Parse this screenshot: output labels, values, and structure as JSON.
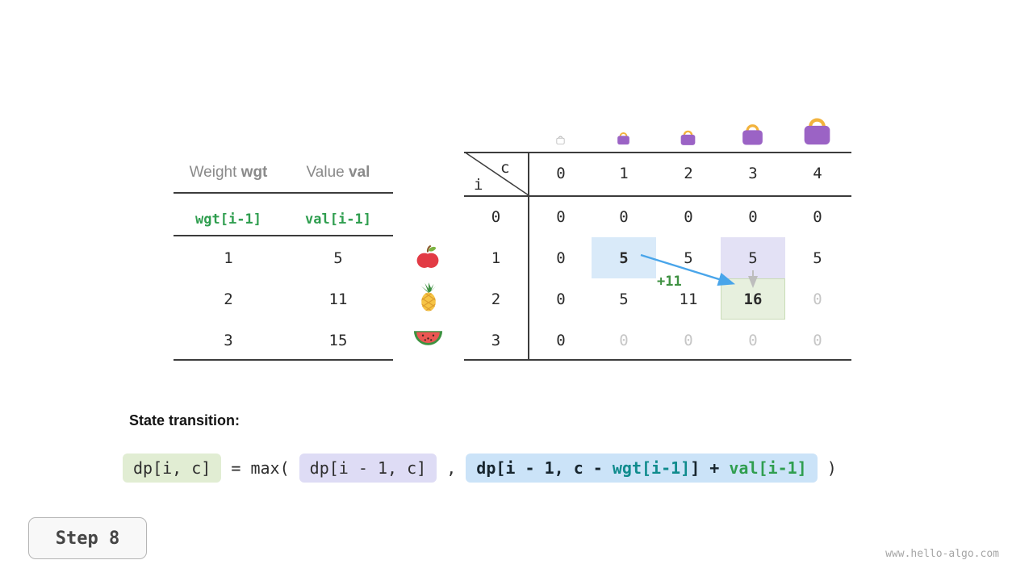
{
  "colors": {
    "code_green": "#2f9e4f",
    "code_teal": "#0f8b8d",
    "arrow_blue": "#49a5ea",
    "hl_blue": "#d9eaf9",
    "hl_purple": "#e3e1f5",
    "hl_green": "#e7f0de",
    "box_green": "#e1edd3",
    "box_lavender": "#dedcf5",
    "box_blue": "#cbe3f8",
    "bag_purple": "#9b63c5",
    "bag_handle": "#f2b33d",
    "annotation_green": "#3f9142"
  },
  "items_table": {
    "header": [
      {
        "label": "Weight ",
        "code": "wgt"
      },
      {
        "label": "Value ",
        "code": "val"
      }
    ],
    "index_row": [
      "wgt[i-1]",
      "val[i-1]"
    ],
    "rows": [
      {
        "weight": "1",
        "value": "5",
        "icon": "apple"
      },
      {
        "weight": "2",
        "value": "11",
        "icon": "pineapple"
      },
      {
        "weight": "3",
        "value": "15",
        "icon": "watermelon"
      }
    ]
  },
  "dp_table": {
    "corner": {
      "row_var": "i",
      "col_var": "c"
    },
    "col_headers": [
      "0",
      "1",
      "2",
      "3",
      "4"
    ],
    "row_headers": [
      "0",
      "1",
      "2",
      "3"
    ],
    "rows": [
      [
        {
          "t": "0"
        },
        {
          "t": "0"
        },
        {
          "t": "0"
        },
        {
          "t": "0"
        },
        {
          "t": "0"
        }
      ],
      [
        {
          "t": "0"
        },
        {
          "t": "5",
          "bold": true,
          "hl": "blue"
        },
        {
          "t": "5"
        },
        {
          "t": "5",
          "hl": "purple"
        },
        {
          "t": "5"
        }
      ],
      [
        {
          "t": "0"
        },
        {
          "t": "5"
        },
        {
          "t": "11"
        },
        {
          "t": "16",
          "bold": true,
          "hl": "green"
        },
        {
          "t": "0",
          "dim": true
        }
      ],
      [
        {
          "t": "0"
        },
        {
          "t": "0",
          "dim": true
        },
        {
          "t": "0",
          "dim": true
        },
        {
          "t": "0",
          "dim": true
        },
        {
          "t": "0",
          "dim": true
        }
      ]
    ],
    "transition_annotation": "+11"
  },
  "state_transition": {
    "heading": "State transition:",
    "lhs": "dp[i, c]",
    "equals_max": " = max( ",
    "arg1": "dp[i - 1, c]",
    "separator": " , ",
    "arg2_parts": [
      {
        "text": "dp[i - 1, c - ",
        "role": "plain-bold"
      },
      {
        "text": "wgt[i-1]",
        "role": "wgt"
      },
      {
        "text": "] + ",
        "role": "plain-bold"
      },
      {
        "text": "val[i-1]",
        "role": "val"
      }
    ],
    "closing": " )"
  },
  "footer": {
    "step_label": "Step 8",
    "watermark": "www.hello-algo.com"
  }
}
